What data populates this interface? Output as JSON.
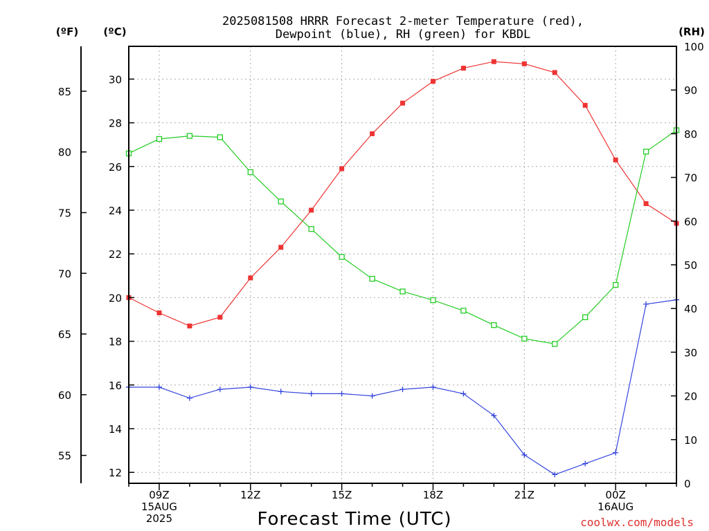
{
  "chart_data": {
    "type": "line",
    "title_lines": [
      "2025081508 HRRR Forecast 2-meter Temperature (red),",
      "Dewpoint (blue), RH (green) for KBDL"
    ],
    "xlabel": "Forecast Time (UTC)",
    "credit": "coolwx.com/models",
    "units": {
      "f": "(ºF)",
      "c": "(ºC)",
      "rh": "(RH)"
    },
    "x": [
      "08Z",
      "09Z",
      "10Z",
      "11Z",
      "12Z",
      "13Z",
      "14Z",
      "15Z",
      "16Z",
      "17Z",
      "18Z",
      "19Z",
      "20Z",
      "21Z",
      "22Z",
      "23Z",
      "00Z",
      "01Z",
      "02Z"
    ],
    "x_tick_labels": [
      {
        "hour": "09Z",
        "lines": [
          "09Z",
          "15AUG",
          "2025"
        ]
      },
      {
        "hour": "12Z",
        "lines": [
          "12Z"
        ]
      },
      {
        "hour": "15Z",
        "lines": [
          "15Z"
        ]
      },
      {
        "hour": "18Z",
        "lines": [
          "18Z"
        ]
      },
      {
        "hour": "21Z",
        "lines": [
          "21Z"
        ]
      },
      {
        "hour": "00Z",
        "lines": [
          "00Z",
          "16AUG"
        ]
      }
    ],
    "celsius_axis": {
      "range": [
        11.5,
        31.5
      ],
      "ticks": [
        12,
        14,
        16,
        18,
        20,
        22,
        24,
        26,
        28,
        30
      ]
    },
    "fahrenheit_axis": {
      "ticks": [
        55,
        60,
        65,
        70,
        75,
        80,
        85
      ]
    },
    "rh_axis": {
      "range": [
        0,
        100
      ],
      "ticks": [
        0,
        10,
        20,
        30,
        40,
        50,
        60,
        70,
        80,
        90,
        100
      ]
    },
    "grid": true,
    "series": [
      {
        "name": "Temperature",
        "color": "#ee3333",
        "marker": "filled-square",
        "axis": "c",
        "values": [
          20.0,
          19.3,
          18.7,
          19.1,
          20.9,
          22.3,
          24.0,
          25.9,
          27.5,
          28.9,
          29.9,
          30.5,
          30.8,
          30.7,
          30.3,
          28.8,
          26.3,
          24.3,
          23.4
        ]
      },
      {
        "name": "Dewpoint",
        "color": "#3344dd",
        "marker": "plus",
        "axis": "c",
        "values": [
          15.9,
          15.9,
          15.4,
          15.8,
          15.9,
          15.7,
          15.6,
          15.6,
          15.5,
          15.8,
          15.9,
          15.6,
          14.6,
          12.8,
          11.9,
          12.4,
          12.9,
          19.7,
          19.9
        ]
      },
      {
        "name": "RH",
        "color": "#22cc22",
        "marker": "open-square",
        "axis": "rh",
        "values": [
          75.5,
          78.8,
          79.5,
          79.2,
          71.2,
          64.5,
          58.2,
          51.8,
          46.8,
          43.9,
          41.9,
          39.5,
          36.2,
          33.1,
          31.9,
          38.0,
          45.4,
          75.9,
          80.8
        ]
      }
    ]
  }
}
